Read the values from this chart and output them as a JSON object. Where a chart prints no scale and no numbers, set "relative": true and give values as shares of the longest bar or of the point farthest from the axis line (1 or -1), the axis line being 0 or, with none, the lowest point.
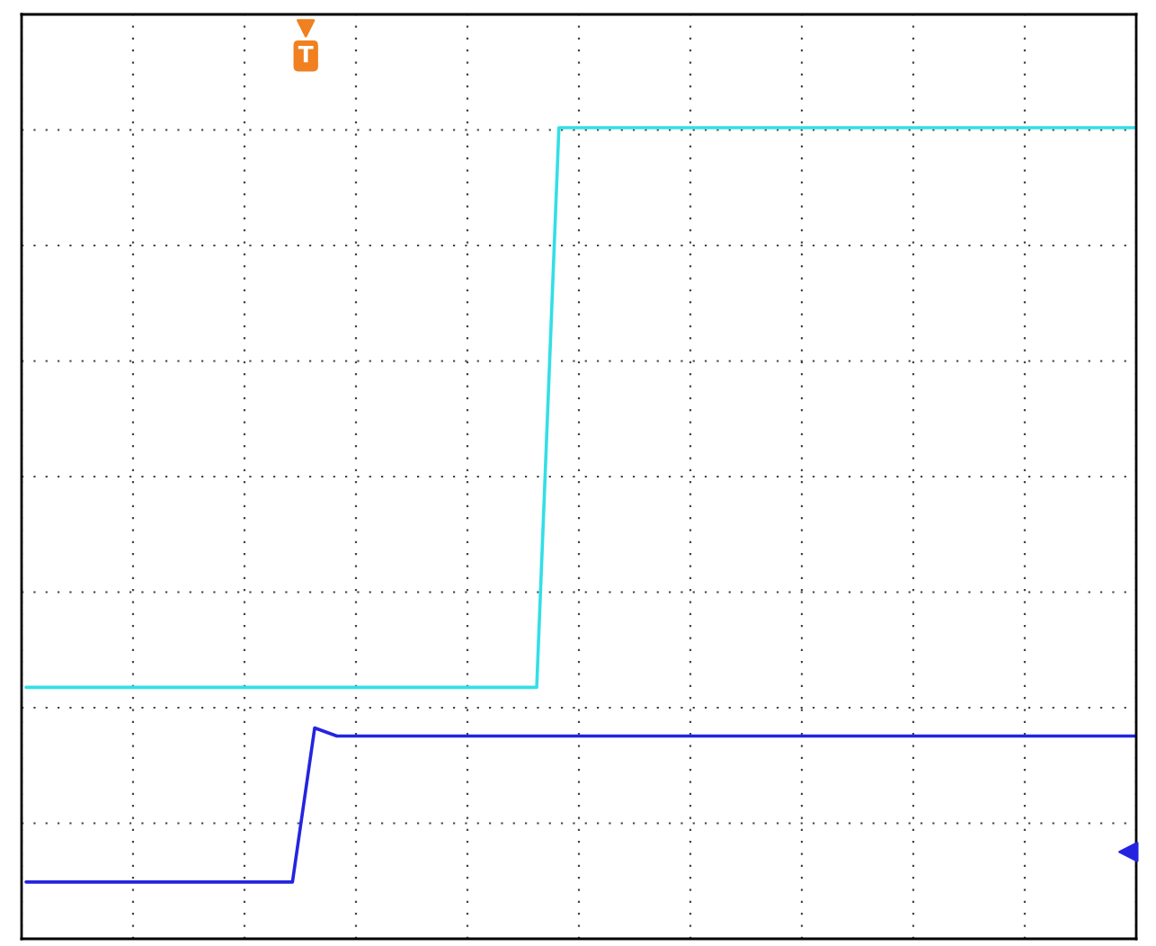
{
  "chart_data": {
    "type": "line",
    "relative": true,
    "grid": true,
    "line_style": "solid",
    "marker": "none",
    "tick_labels": false,
    "annotations": [
      "T"
    ],
    "categories": [
      null,
      null,
      null,
      null,
      null,
      null,
      null,
      null,
      null,
      null,
      null,
      null,
      null,
      null,
      null,
      null,
      null,
      null,
      null,
      null,
      null,
      null,
      null,
      null,
      null,
      null,
      null,
      null,
      null,
      null,
      null,
      null,
      null,
      null,
      null,
      null,
      null,
      null,
      null,
      null,
      null,
      null,
      null,
      null,
      null,
      null,
      null,
      null,
      null,
      null,
      null
    ],
    "series": [
      {
        "color": "#33dfe6",
        "values": [
          0.31,
          0.31,
          0.31,
          0.31,
          0.31,
          0.31,
          0.31,
          0.31,
          0.31,
          0.31,
          0.31,
          0.31,
          0.31,
          0.31,
          0.31,
          0.31,
          0.31,
          0.31,
          0.31,
          0.31,
          0.31,
          0.31,
          0.31,
          0.31,
          1,
          1,
          1,
          1,
          1,
          1,
          1,
          1,
          1,
          1,
          1,
          1,
          1,
          1,
          1,
          1,
          1,
          1,
          1,
          1,
          1,
          1,
          1,
          1,
          1,
          1,
          1
        ]
      },
      {
        "color": "#2424e0",
        "values": [
          0.07,
          0.07,
          0.07,
          0.07,
          0.07,
          0.07,
          0.07,
          0.07,
          0.07,
          0.07,
          0.07,
          0.07,
          0.07,
          0.26,
          0.25,
          0.25,
          0.25,
          0.25,
          0.25,
          0.25,
          0.25,
          0.25,
          0.25,
          0.25,
          0.25,
          0.25,
          0.25,
          0.25,
          0.25,
          0.25,
          0.25,
          0.25,
          0.25,
          0.25,
          0.25,
          0.25,
          0.25,
          0.25,
          0.25,
          0.25,
          0.25,
          0.25,
          0.25,
          0.25,
          0.25,
          0.25,
          0.25,
          0.25,
          0.25,
          0.25,
          0.25
        ]
      }
    ]
  }
}
